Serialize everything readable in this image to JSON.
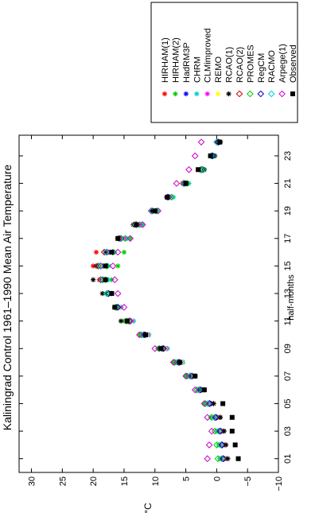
{
  "chart_data": {
    "type": "scatter",
    "orientation": "rotated-90-ccw",
    "title": "Kaliningrad Control 1961–1990 Mean Air Temperature",
    "xlabel": "half-months",
    "ylabel": "°C",
    "xlim": [
      0,
      24.5
    ],
    "ylim": [
      -10,
      32
    ],
    "x_ticks": [
      1,
      3,
      5,
      7,
      9,
      11,
      13,
      15,
      17,
      19,
      21,
      23
    ],
    "x_tick_labels": [
      "01",
      "03",
      "05",
      "07",
      "09",
      "11",
      "13",
      "15",
      "17",
      "19",
      "21",
      "23"
    ],
    "y_ticks": [
      -10,
      -5,
      0,
      5,
      10,
      15,
      20,
      25,
      30
    ],
    "y_tick_labels": [
      "−10",
      "−5",
      "0",
      "5",
      "10",
      "15",
      "20",
      "25",
      "30"
    ],
    "legend_position": "top",
    "x": [
      1,
      2,
      3,
      4,
      5,
      6,
      7,
      8,
      9,
      10,
      11,
      12,
      13,
      14,
      15,
      16,
      17,
      18,
      19,
      20,
      21,
      22,
      23,
      24
    ],
    "series": [
      {
        "name": "HIRHAM(1)",
        "color": "#ff0000",
        "marker": "star",
        "values": [
          -1.5,
          -1.3,
          -1.0,
          -0.5,
          0.5,
          2.5,
          4.0,
          6.0,
          8.5,
          11.5,
          14.0,
          16.0,
          17.5,
          19.0,
          20.0,
          19.5,
          16.0,
          13.0,
          10.5,
          8.0,
          5.5,
          2.5,
          0.8,
          -0.3
        ]
      },
      {
        "name": "HIRHAM(2)",
        "color": "#00cc00",
        "marker": "star",
        "values": [
          -0.5,
          -0.3,
          0.0,
          1.0,
          2.0,
          3.0,
          5.0,
          7.0,
          9.5,
          12.5,
          15.0,
          16.5,
          17.5,
          17.0,
          16.0,
          15.0,
          14.0,
          12.0,
          10.0,
          7.5,
          5.0,
          2.5,
          1.0,
          0.0
        ]
      },
      {
        "name": "HadRM3P",
        "color": "#0000ff",
        "marker": "star",
        "values": [
          -1.3,
          -1.0,
          -0.8,
          -0.2,
          0.8,
          2.0,
          3.5,
          5.5,
          8.0,
          11.0,
          13.5,
          15.5,
          17.0,
          18.0,
          18.5,
          17.5,
          15.5,
          12.5,
          10.0,
          7.5,
          5.0,
          2.5,
          0.8,
          -0.2
        ]
      },
      {
        "name": "CHRM",
        "color": "#00cccc",
        "marker": "star",
        "values": [
          -1.0,
          -0.8,
          -0.5,
          0.0,
          1.0,
          2.5,
          3.5,
          5.5,
          8.0,
          11.0,
          13.5,
          15.5,
          17.0,
          17.5,
          17.5,
          16.5,
          14.5,
          12.0,
          9.5,
          7.0,
          4.5,
          2.0,
          0.5,
          -0.5
        ]
      },
      {
        "name": "CLMimproved",
        "color": "#ff00ff",
        "marker": "star",
        "values": [
          -1.2,
          -1.0,
          -0.7,
          0.0,
          1.0,
          2.3,
          3.8,
          5.8,
          8.2,
          11.2,
          13.8,
          15.8,
          17.2,
          18.0,
          18.5,
          17.5,
          15.0,
          12.5,
          10.0,
          7.5,
          5.0,
          2.2,
          0.5,
          -0.5
        ]
      },
      {
        "name": "REMO",
        "color": "#ffff00",
        "marker": "star",
        "values": [
          -1.4,
          -1.2,
          -0.9,
          -0.3,
          0.7,
          2.2,
          3.7,
          5.7,
          8.3,
          11.3,
          13.8,
          15.8,
          17.3,
          18.2,
          18.8,
          17.8,
          15.3,
          12.8,
          10.2,
          7.6,
          5.1,
          2.3,
          0.6,
          -0.4
        ]
      },
      {
        "name": "RCAO(1)",
        "color": "#000000",
        "marker": "star",
        "values": [
          -1.8,
          -1.5,
          -1.2,
          -0.6,
          0.5,
          2.5,
          4.5,
          6.5,
          9.5,
          12.0,
          15.5,
          16.5,
          18.5,
          20.0,
          19.5,
          18.0,
          16.0,
          13.5,
          10.5,
          8.0,
          5.0,
          2.0,
          0.3,
          -0.6
        ]
      },
      {
        "name": "RCAO(2)",
        "color": "#cc0000",
        "marker": "diamond",
        "values": [
          -1.0,
          -0.8,
          -0.5,
          0.2,
          1.2,
          2.8,
          4.2,
          6.2,
          8.8,
          11.8,
          14.2,
          16.2,
          17.8,
          18.8,
          19.2,
          18.2,
          15.8,
          13.2,
          10.6,
          8.0,
          5.4,
          2.6,
          0.8,
          -0.2
        ]
      },
      {
        "name": "PROMES",
        "color": "#00cc00",
        "marker": "diamond",
        "values": [
          -0.2,
          0.0,
          0.3,
          0.8,
          1.8,
          3.2,
          4.8,
          6.8,
          9.3,
          12.2,
          14.6,
          16.4,
          17.6,
          18.0,
          17.8,
          16.8,
          14.8,
          12.4,
          9.8,
          7.3,
          4.8,
          2.2,
          0.6,
          -0.3
        ]
      },
      {
        "name": "RegCM",
        "color": "#0000cc",
        "marker": "diamond",
        "values": [
          -1.1,
          -0.9,
          -0.6,
          0.1,
          1.1,
          2.6,
          4.0,
          6.0,
          8.6,
          11.6,
          14.0,
          16.0,
          17.5,
          18.5,
          18.8,
          17.8,
          15.5,
          13.0,
          10.4,
          7.8,
          5.2,
          2.4,
          0.7,
          -0.3
        ]
      },
      {
        "name": "RACMO",
        "color": "#00cccc",
        "marker": "diamond",
        "values": [
          -0.8,
          -0.6,
          -0.3,
          0.4,
          1.4,
          2.9,
          4.3,
          6.3,
          8.9,
          11.9,
          14.3,
          16.3,
          17.8,
          18.6,
          18.9,
          17.9,
          15.6,
          13.1,
          10.5,
          7.9,
          5.3,
          2.5,
          0.9,
          0.0
        ]
      },
      {
        "name": "Arpege(1)",
        "color": "#cc00cc",
        "marker": "diamond",
        "values": [
          1.5,
          1.2,
          0.8,
          1.5,
          2.0,
          3.5,
          5.0,
          7.0,
          10.0,
          12.5,
          14.0,
          15.0,
          16.0,
          16.5,
          16.8,
          16.0,
          14.0,
          12.0,
          9.5,
          8.0,
          6.5,
          4.5,
          3.5,
          2.5
        ]
      },
      {
        "name": "Observed",
        "color": "#000000",
        "marker": "square",
        "values": [
          -3.5,
          -3.0,
          -2.5,
          -2.5,
          -1.0,
          2.0,
          3.5,
          6.0,
          9.0,
          11.5,
          14.5,
          16.5,
          17.0,
          18.0,
          18.0,
          17.0,
          16.0,
          13.0,
          10.0,
          8.0,
          5.0,
          3.0,
          1.0,
          -0.5
        ]
      }
    ]
  }
}
